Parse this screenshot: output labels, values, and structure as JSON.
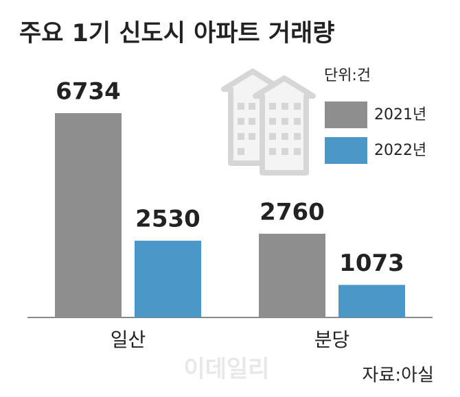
{
  "chart_data": {
    "type": "bar",
    "title": "주요 1기 신도시 아파트 거래량",
    "unit_label": "단위:건",
    "categories": [
      "일산",
      "분당"
    ],
    "series": [
      {
        "name": "2021년",
        "color": "#8e8e8e",
        "values": [
          6734,
          2760
        ]
      },
      {
        "name": "2022년",
        "color": "#4b98c8",
        "values": [
          2530,
          1073
        ]
      }
    ],
    "source": "자료:아실",
    "watermark": "이데일리"
  }
}
